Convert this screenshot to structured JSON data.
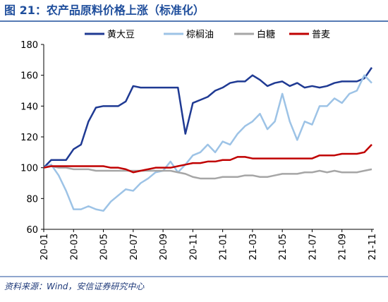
{
  "chart_data": {
    "type": "line",
    "title": "图 21：农产品原料价格上涨（标准化）",
    "source": "资料来源：Wind，安信证券研究中心",
    "categories": [
      "20-01",
      null,
      null,
      null,
      "20-03",
      null,
      null,
      null,
      "20-05",
      null,
      null,
      null,
      "20-07",
      null,
      null,
      null,
      "20-09",
      null,
      null,
      null,
      "20-11",
      null,
      null,
      null,
      "21-01",
      null,
      null,
      null,
      "21-03",
      null,
      null,
      null,
      "21-05",
      null,
      null,
      null,
      "21-07",
      null,
      null,
      null,
      "21-09",
      null,
      null,
      null,
      "21-11"
    ],
    "series": [
      {
        "name": "黄大豆",
        "color": "#1f3a93",
        "values": [
          100,
          105,
          105,
          105,
          112,
          115,
          130,
          139,
          140,
          140,
          140,
          143,
          153,
          152,
          152,
          152,
          152,
          152,
          152,
          122,
          142,
          144,
          146,
          150,
          152,
          155,
          156,
          156,
          160,
          157,
          153,
          155,
          156,
          153,
          155,
          152,
          153,
          152,
          153,
          155,
          156,
          156,
          156,
          158,
          165
        ]
      },
      {
        "name": "棕榈油",
        "color": "#9dc3e6",
        "values": [
          100,
          102,
          95,
          85,
          73,
          73,
          75,
          73,
          72,
          78,
          82,
          86,
          85,
          90,
          93,
          97,
          98,
          104,
          97,
          102,
          108,
          110,
          115,
          110,
          117,
          115,
          122,
          127,
          130,
          135,
          125,
          130,
          148,
          130,
          118,
          130,
          128,
          140,
          140,
          145,
          142,
          148,
          150,
          160,
          155
        ]
      },
      {
        "name": "白糖",
        "color": "#a6a6a6",
        "values": [
          100,
          101,
          100,
          100,
          99,
          99,
          99,
          98,
          98,
          98,
          98,
          98,
          98,
          98,
          98,
          98,
          98,
          98,
          97,
          96,
          94,
          93,
          93,
          93,
          94,
          94,
          94,
          95,
          95,
          94,
          94,
          95,
          96,
          96,
          96,
          97,
          97,
          98,
          97,
          98,
          97,
          97,
          97,
          98,
          99
        ]
      },
      {
        "name": "普麦",
        "color": "#c00000",
        "values": [
          100,
          101,
          101,
          101,
          101,
          101,
          101,
          101,
          101,
          100,
          100,
          99,
          97,
          98,
          99,
          100,
          100,
          100,
          101,
          102,
          103,
          103,
          104,
          104,
          105,
          105,
          107,
          107,
          106,
          106,
          106,
          106,
          106,
          106,
          106,
          106,
          106,
          108,
          108,
          108,
          109,
          109,
          109,
          110,
          115
        ]
      }
    ],
    "ylim": [
      60,
      180
    ],
    "yticks": [
      60,
      80,
      100,
      120,
      140,
      160,
      180
    ],
    "legend": "top"
  }
}
